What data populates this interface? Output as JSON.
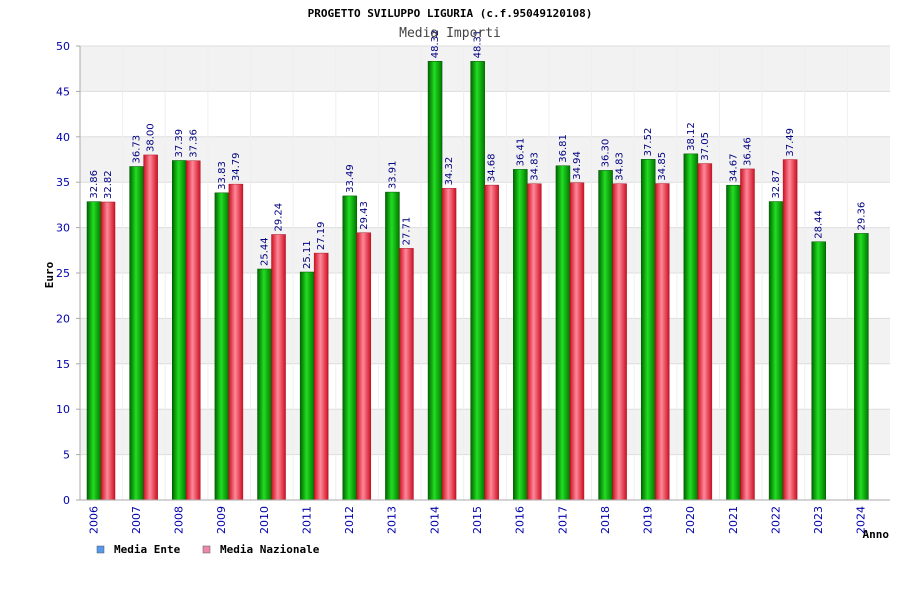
{
  "chart_data": {
    "type": "bar",
    "title": "PROGETTO SVILUPPO LIGURIA (c.f.95049120108)",
    "subtitle": "Media Importi",
    "xlabel": "Anno",
    "ylabel": "Euro",
    "ylim": [
      0,
      50
    ],
    "yticks": [
      "0",
      "5",
      "10",
      "15",
      "20",
      "25",
      "30",
      "35",
      "40",
      "45",
      "50"
    ],
    "grid": true,
    "legend_position": "bottom-left",
    "categories": [
      "2006",
      "2007",
      "2008",
      "2009",
      "2010",
      "2011",
      "2012",
      "2013",
      "2014",
      "2015",
      "2016",
      "2017",
      "2018",
      "2019",
      "2020",
      "2021",
      "2022",
      "2023",
      "2024"
    ],
    "series": [
      {
        "name": "Media Ente",
        "color": "#00aa00",
        "legend_color": "#5599ee",
        "values": [
          32.86,
          36.73,
          37.39,
          33.83,
          25.44,
          25.11,
          33.49,
          33.91,
          48.32,
          48.31,
          36.41,
          36.81,
          36.3,
          37.52,
          38.12,
          34.67,
          32.87,
          28.44,
          29.36
        ],
        "labels": [
          "32.86",
          "36.73",
          "37.39",
          "33.83",
          "25.44",
          "25.11",
          "33.49",
          "33.91",
          "48.32",
          "48.31",
          "36.41",
          "36.81",
          "36.30",
          "37.52",
          "38.12",
          "34.67",
          "32.87",
          "28.44",
          "29.36"
        ]
      },
      {
        "name": "Media Nazionale",
        "color": "#ee2233",
        "legend_color": "#ee88aa",
        "values": [
          32.82,
          38.0,
          37.36,
          34.79,
          29.24,
          27.19,
          29.43,
          27.71,
          34.32,
          34.68,
          34.83,
          34.94,
          34.83,
          34.85,
          37.05,
          36.46,
          37.49,
          null,
          null
        ],
        "labels": [
          "32.82",
          "38.00",
          "37.36",
          "34.79",
          "29.24",
          "27.19",
          "29.43",
          "27.71",
          "34.32",
          "34.68",
          "34.83",
          "34.94",
          "34.83",
          "34.85",
          "37.05",
          "36.46",
          "37.49",
          "",
          ""
        ]
      }
    ]
  }
}
